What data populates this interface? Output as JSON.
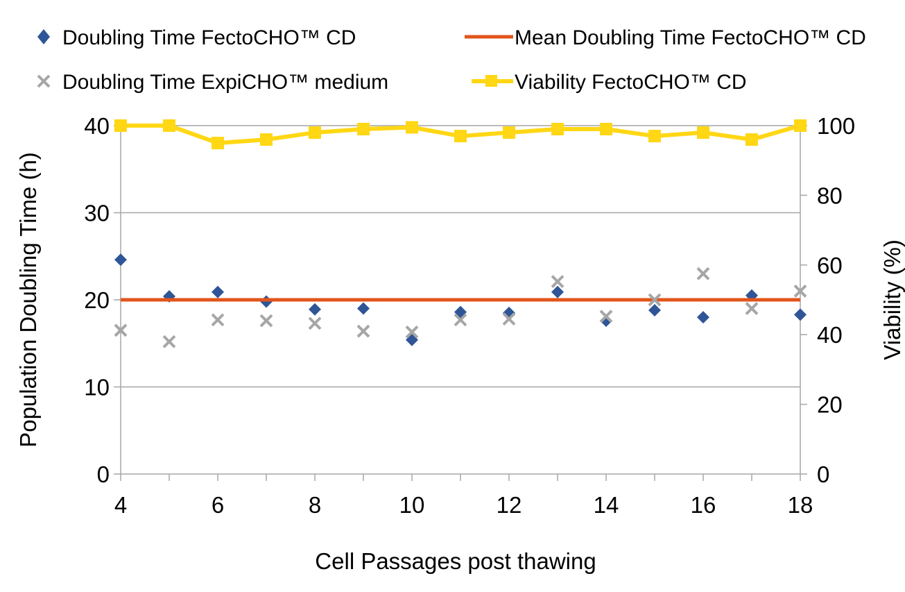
{
  "chart_data": {
    "type": "scatter",
    "xlabel": "Cell Passages post thawing",
    "ylabel": "Population Doubling Time (h)",
    "y2label": "Viability (%)",
    "xlim": [
      4,
      18
    ],
    "ylim": [
      0,
      40
    ],
    "y2lim": [
      0,
      100
    ],
    "x_ticks": [
      4,
      6,
      8,
      10,
      12,
      14,
      16,
      18
    ],
    "y_ticks": [
      0,
      10,
      20,
      30,
      40
    ],
    "y2_ticks": [
      0,
      20,
      40,
      60,
      80,
      100
    ],
    "grid": "horizontal",
    "legend": "top",
    "series": [
      {
        "name": "Doubling Time FectoCHO™ CD",
        "kind": "scatter",
        "marker": "diamond",
        "axis": "left",
        "color": "#2F5597",
        "x": [
          4,
          5,
          6,
          7,
          8,
          9,
          10,
          11,
          12,
          13,
          14,
          15,
          16,
          17,
          18
        ],
        "y": [
          24.6,
          20.4,
          20.9,
          19.8,
          18.9,
          19.0,
          15.4,
          18.6,
          18.5,
          20.9,
          17.6,
          18.8,
          18.0,
          20.5,
          18.3
        ]
      },
      {
        "name": "Mean Doubling Time FectoCHO™ CD",
        "kind": "line",
        "marker": "none",
        "axis": "left",
        "color": "#E2551B",
        "x": [
          4,
          18
        ],
        "y": [
          20.0,
          20.0
        ]
      },
      {
        "name": "Doubling Time ExpiCHO™ medium",
        "kind": "scatter",
        "marker": "x",
        "axis": "left",
        "color": "#A6A6A6",
        "x": [
          4,
          5,
          6,
          7,
          8,
          9,
          10,
          11,
          12,
          13,
          14,
          15,
          16,
          17,
          18
        ],
        "y": [
          16.5,
          15.2,
          17.7,
          17.6,
          17.3,
          16.4,
          16.3,
          17.7,
          17.8,
          22.1,
          18.1,
          20.0,
          23.0,
          19.0,
          21.0
        ]
      },
      {
        "name": "Viability FectoCHO™ CD",
        "kind": "line",
        "marker": "square",
        "axis": "right",
        "color": "#FFD714",
        "x": [
          4,
          5,
          6,
          7,
          8,
          9,
          10,
          11,
          12,
          13,
          14,
          15,
          16,
          17,
          18
        ],
        "y": [
          100,
          100,
          95,
          96,
          98,
          99,
          99.5,
          97,
          98,
          99,
          99,
          97,
          98,
          96,
          100
        ]
      }
    ]
  }
}
